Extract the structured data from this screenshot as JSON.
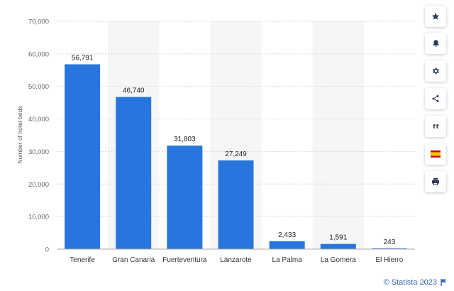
{
  "chart_data": {
    "type": "bar",
    "categories": [
      "Tenerife",
      "Gran Canaria",
      "Fuerteventura",
      "Lanzarote",
      "La Palma",
      "La Gomera",
      "El Hierro"
    ],
    "values": [
      56791,
      46740,
      31803,
      27249,
      2433,
      1591,
      243
    ],
    "value_labels": [
      "56,791",
      "46,740",
      "31,803",
      "27,249",
      "2,433",
      "1,591",
      "243"
    ],
    "ylabel": "Number of hotel beds",
    "ylim": [
      0,
      70000
    ],
    "yticks": [
      0,
      10000,
      20000,
      30000,
      40000,
      50000,
      60000,
      70000
    ],
    "ytick_labels": [
      "0",
      "10,000",
      "20,000",
      "30,000",
      "40,000",
      "50,000",
      "60,000",
      "70,000"
    ],
    "bar_color": "#2876dd",
    "alt_band_color": "#f6f6f7",
    "grid": true
  },
  "toolbar": {
    "buttons": [
      {
        "icon": "star-icon"
      },
      {
        "icon": "bell-icon"
      },
      {
        "icon": "gear-icon"
      },
      {
        "icon": "share-icon"
      },
      {
        "icon": "quote-icon"
      },
      {
        "icon": "spain-flag-icon"
      },
      {
        "icon": "print-icon"
      }
    ]
  },
  "credit": {
    "text": "© Statista 2023",
    "icon": "flag-icon"
  }
}
